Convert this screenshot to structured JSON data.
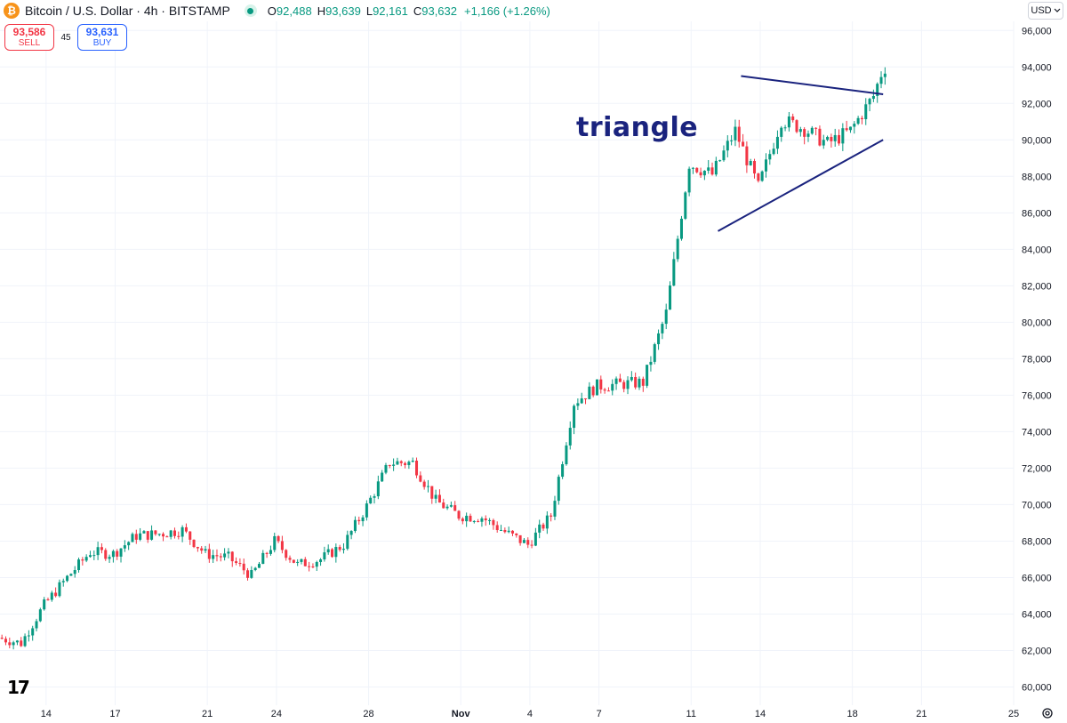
{
  "header": {
    "coin_icon": "₿",
    "title": "Bitcoin / U.S. Dollar · 4h · BITSTAMP",
    "ohlc": [
      {
        "k": "O",
        "v": "92,488"
      },
      {
        "k": "H",
        "v": "93,639"
      },
      {
        "k": "L",
        "v": "92,161"
      },
      {
        "k": "C",
        "v": "93,632"
      }
    ],
    "change": "+1,166 (+1.26%)"
  },
  "trade": {
    "sell_price": "93,586",
    "sell_label": "SELL",
    "spread": "45",
    "buy_price": "93,631",
    "buy_label": "BUY"
  },
  "currency": {
    "label": "USD",
    "icon": "chevron-down-icon"
  },
  "annotation": "triangle",
  "logo_text": "17",
  "colors": {
    "up": "#089981",
    "down": "#f23645",
    "trendline": "#1a237e",
    "grid": "#f0f3fa"
  },
  "chart_data": {
    "type": "candlestick",
    "interval": "4h",
    "y_axis_side": "right",
    "ylim": [
      59000,
      96500
    ],
    "y_ticks": [
      96000,
      94000,
      92000,
      90000,
      88000,
      86000,
      84000,
      82000,
      80000,
      78000,
      76000,
      74000,
      72000,
      70000,
      68000,
      66000,
      64000,
      62000,
      60000
    ],
    "y_tick_labels": [
      "96,000",
      "94,000",
      "92,000",
      "90,000",
      "88,000",
      "86,000",
      "84,000",
      "82,000",
      "80,000",
      "78,000",
      "76,000",
      "74,000",
      "72,000",
      "70,000",
      "68,000",
      "66,000",
      "64,000",
      "62,000",
      "60,000"
    ],
    "x_start": "2024-10-12",
    "x_end": "2024-11-25",
    "x_ticks": [
      {
        "date": "2024-10-14",
        "label": "14"
      },
      {
        "date": "2024-10-17",
        "label": "17"
      },
      {
        "date": "2024-10-21",
        "label": "21"
      },
      {
        "date": "2024-10-24",
        "label": "24"
      },
      {
        "date": "2024-10-28",
        "label": "28"
      },
      {
        "date": "2024-11-01",
        "label": "Nov",
        "bold": true
      },
      {
        "date": "2024-11-04",
        "label": "4"
      },
      {
        "date": "2024-11-07",
        "label": "7"
      },
      {
        "date": "2024-11-11",
        "label": "11"
      },
      {
        "date": "2024-11-14",
        "label": "14"
      },
      {
        "date": "2024-11-18",
        "label": "18"
      },
      {
        "date": "2024-11-21",
        "label": "21"
      },
      {
        "date": "2024-11-25",
        "label": "25"
      }
    ],
    "price_anchors": [
      [
        "2024-10-12",
        62700
      ],
      [
        "2024-10-13",
        62400
      ],
      [
        "2024-10-14",
        64500
      ],
      [
        "2024-10-15",
        66000
      ],
      [
        "2024-10-16",
        67400
      ],
      [
        "2024-10-17",
        67300
      ],
      [
        "2024-10-18",
        68300
      ],
      [
        "2024-10-19",
        68400
      ],
      [
        "2024-10-20",
        68600
      ],
      [
        "2024-10-21",
        67300
      ],
      [
        "2024-10-22",
        67100
      ],
      [
        "2024-10-23",
        66100
      ],
      [
        "2024-10-24",
        68000
      ],
      [
        "2024-10-25",
        66700
      ],
      [
        "2024-10-26",
        67000
      ],
      [
        "2024-10-27",
        67800
      ],
      [
        "2024-10-28",
        69900
      ],
      [
        "2024-10-29",
        72300
      ],
      [
        "2024-10-30",
        72300
      ],
      [
        "2024-10-31",
        70200
      ],
      [
        "2024-11-01",
        69400
      ],
      [
        "2024-11-02",
        69300
      ],
      [
        "2024-11-03",
        68500
      ],
      [
        "2024-11-04",
        67800
      ],
      [
        "2024-11-05",
        69400
      ],
      [
        "2024-11-06",
        75600
      ],
      [
        "2024-11-07",
        76500
      ],
      [
        "2024-11-08",
        76600
      ],
      [
        "2024-11-09",
        76700
      ],
      [
        "2024-11-10",
        80500
      ],
      [
        "2024-11-11",
        88700
      ],
      [
        "2024-11-12",
        88100
      ],
      [
        "2024-11-13",
        90500
      ],
      [
        "2024-11-14",
        87400
      ],
      [
        "2024-11-15",
        91100
      ],
      [
        "2024-11-16",
        90600
      ],
      [
        "2024-11-17",
        89800
      ],
      [
        "2024-11-18",
        90500
      ],
      [
        "2024-11-19",
        92400
      ],
      [
        "2024-11-19T08:00",
        93632
      ]
    ],
    "trendlines": [
      {
        "from": [
          "2024-11-13T04:00",
          93500
        ],
        "to": [
          "2024-11-19T08:00",
          92500
        ]
      },
      {
        "from": [
          "2024-11-12T04:00",
          85000
        ],
        "to": [
          "2024-11-19T08:00",
          90000
        ]
      }
    ]
  }
}
